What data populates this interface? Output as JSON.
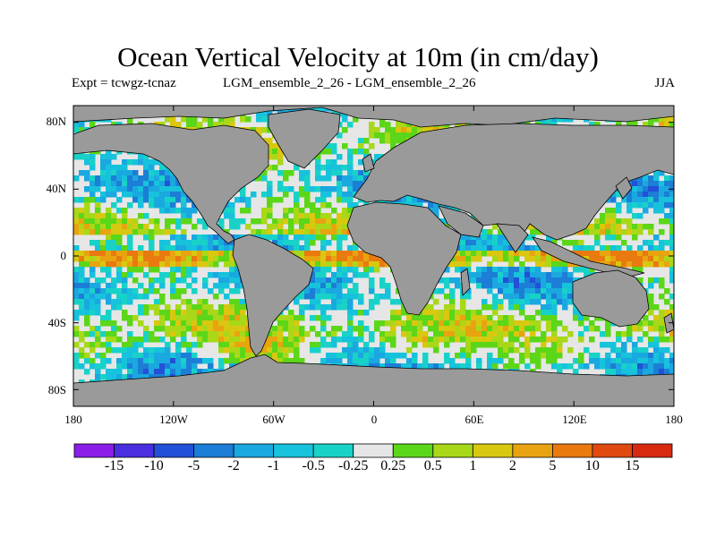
{
  "title": "Ocean Vertical Velocity at 10m (in cm/day)",
  "subtitle_left": "Expt = tcwgz-tcnaz",
  "subtitle_center": "LGM_ensemble_2_26 - LGM_ensemble_2_26",
  "subtitle_right": "JJA",
  "lat_ticks": [
    "80N",
    "40N",
    "0",
    "40S",
    "80S"
  ],
  "lon_ticks": [
    "180",
    "120W",
    "60W",
    "0",
    "60E",
    "120E",
    "180"
  ],
  "map": {
    "lon_range": [
      -180,
      180
    ],
    "lat_range": [
      -90,
      90
    ],
    "land_color": "#9a9a9a",
    "coast_color": "#000000"
  },
  "colorbar": {
    "labels": [
      "-15",
      "-10",
      "-5",
      "-2",
      "-1",
      "-0.5",
      "-0.25",
      "0.25",
      "0.5",
      "1",
      "2",
      "5",
      "10",
      "15"
    ],
    "colors": [
      "#8a1ee8",
      "#4a2ee0",
      "#2350d8",
      "#1c7ed6",
      "#1aa8e0",
      "#16c2dc",
      "#18d2c8",
      "#e6e6e6",
      "#5cd618",
      "#a8d818",
      "#d8c810",
      "#e8a410",
      "#e87a10",
      "#e04a10",
      "#d82a10"
    ]
  }
}
